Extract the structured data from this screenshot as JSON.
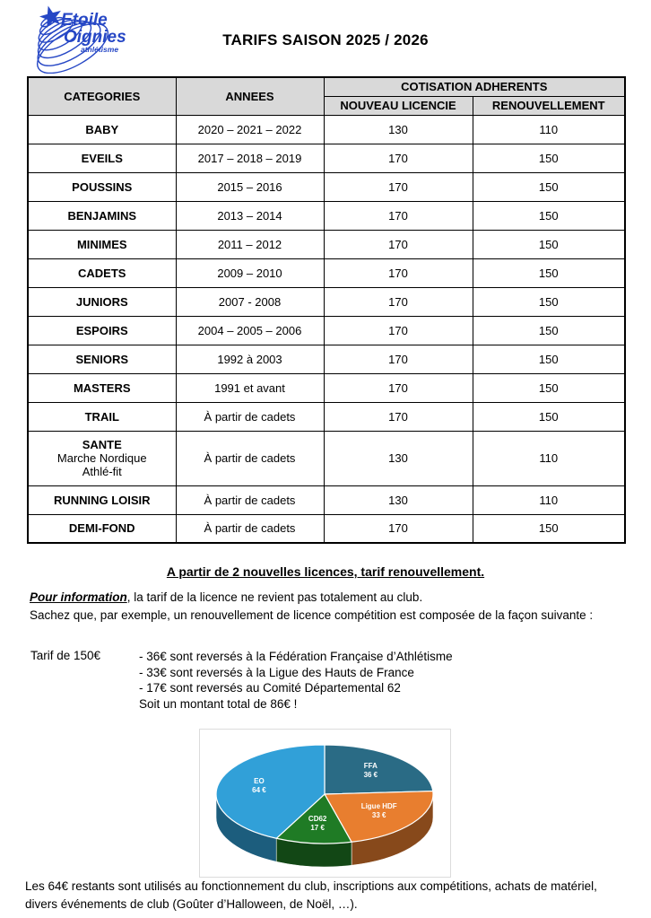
{
  "page": {
    "title": "TARIFS SAISON 2025 / 2026"
  },
  "logo": {
    "line1": "Etoile",
    "line2": "Oignies",
    "line3": "athlétisme",
    "color": "#2647C5"
  },
  "table": {
    "header": {
      "categories": "CATEGORIES",
      "annees": "ANNEES",
      "cotisation": "COTISATION ADHERENTS",
      "nouveau": "NOUVEAU LICENCIE",
      "renouvellement": "RENOUVELLEMENT"
    },
    "header_bg": "#D9D9D9",
    "border_color": "#000000",
    "rows": [
      {
        "category": "BABY",
        "annees": "2020 – 2021 – 2022",
        "nouveau": "130",
        "renouvellement": "110"
      },
      {
        "category": "EVEILS",
        "annees": "2017 – 2018 – 2019",
        "nouveau": "170",
        "renouvellement": "150"
      },
      {
        "category": "POUSSINS",
        "annees": "2015 – 2016",
        "nouveau": "170",
        "renouvellement": "150"
      },
      {
        "category": "BENJAMINS",
        "annees": "2013 – 2014",
        "nouveau": "170",
        "renouvellement": "150"
      },
      {
        "category": "MINIMES",
        "annees": "2011 – 2012",
        "nouveau": "170",
        "renouvellement": "150"
      },
      {
        "category": "CADETS",
        "annees": "2009 – 2010",
        "nouveau": "170",
        "renouvellement": "150"
      },
      {
        "category": "JUNIORS",
        "annees": "2007 - 2008",
        "nouveau": "170",
        "renouvellement": "150"
      },
      {
        "category": "ESPOIRS",
        "annees": "2004 – 2005 – 2006",
        "nouveau": "170",
        "renouvellement": "150"
      },
      {
        "category": "SENIORS",
        "annees": "1992 à 2003",
        "nouveau": "170",
        "renouvellement": "150"
      },
      {
        "category": "MASTERS",
        "annees": "1991 et avant",
        "nouveau": "170",
        "renouvellement": "150"
      },
      {
        "category": "TRAIL",
        "annees": "À partir de cadets",
        "nouveau": "170",
        "renouvellement": "150"
      },
      {
        "category": "SANTE",
        "sub": [
          "Marche Nordique",
          "Athlé-fit"
        ],
        "annees": "À partir de cadets",
        "nouveau": "130",
        "renouvellement": "110"
      },
      {
        "category": "RUNNING LOISIR",
        "annees": "À partir de cadets",
        "nouveau": "130",
        "renouvellement": "110"
      },
      {
        "category": "DEMI-FOND",
        "annees": "À partir de cadets",
        "nouveau": "170",
        "renouvellement": "150"
      }
    ]
  },
  "notes": {
    "highlight": "A partir de 2 nouvelles licences, tarif renouvellement.",
    "info_lead": "Pour information",
    "info_rest": ", la tarif de la licence ne revient pas totalement au club.",
    "info_line2": "Sachez que, par exemple, un renouvellement de licence compétition est composée de la façon suivante :",
    "tarif_label": "Tarif de 150€",
    "breakdown": [
      "- 36€ sont reversés à la Fédération Française d’Athlétisme",
      "- 33€ sont reversés à la Ligue des Hauts de France",
      "- 17€ sont reversés au Comité Départemental 62",
      "Soit un montant total de 86€ !"
    ],
    "footer": "Les 64€ restants sont utilisés au fonctionnement du club, inscriptions aux compétitions, achats de matériel, divers événements de club (Goûter d’Halloween, de Noël, …)."
  },
  "chart_data": {
    "type": "pie",
    "style": "3d",
    "direction": "clockwise",
    "start_angle_deg": 0,
    "total": 150,
    "label_color": "#FFFFFF",
    "box_border": "#DCDCDC",
    "segments": [
      {
        "label": "FFA",
        "value": 36,
        "value_label": "36 €",
        "color": "#2A6B85"
      },
      {
        "label": "Ligue HDF",
        "value": 33,
        "value_label": "33 €",
        "color": "#E87E2F"
      },
      {
        "label": "CD62",
        "value": 17,
        "value_label": "17 €",
        "color": "#1F7B25"
      },
      {
        "label": "EO",
        "value": 64,
        "value_label": "64 €",
        "color": "#31A0D8"
      }
    ]
  }
}
